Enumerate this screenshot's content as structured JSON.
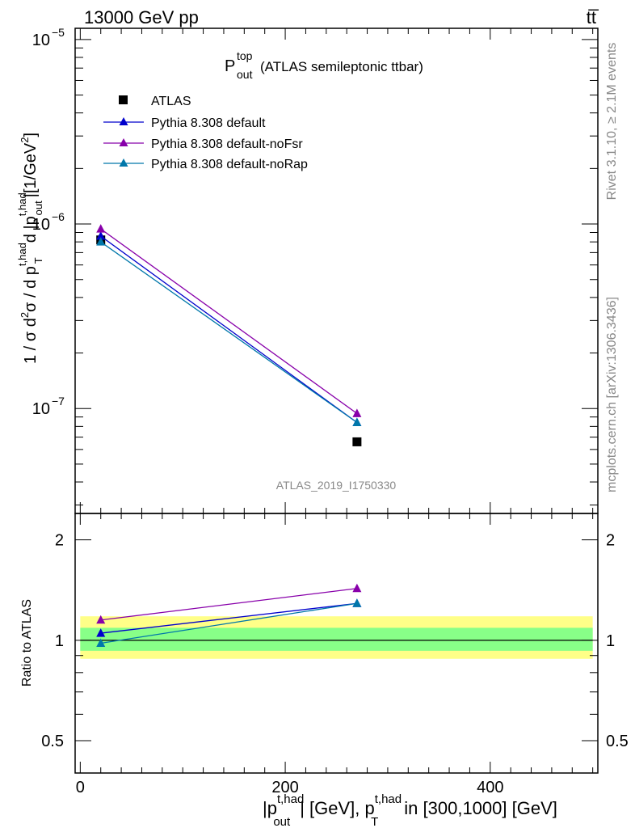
{
  "header": {
    "left": "13000 GeV pp",
    "right": "tt̅"
  },
  "side_labels": {
    "rivet": "Rivet 3.1.10, ≥ 2.1M events",
    "mcplots": "mcplots.cern.ch [arXiv:1306.3436]"
  },
  "chart_data": [
    {
      "type": "line",
      "title": {
        "main": "P",
        "sup": "top",
        "sub": "out",
        "rest": "(ATLAS semileptonic ttbar)"
      },
      "watermark": "ATLAS_2019_I1750330",
      "ylabel": "1 / σ d²σ / d p_T^{t,had} d |p_out^{t,had}| [1/GeV²]",
      "ylabel_parts": {
        "a": "1 / σ d",
        "b": "2",
        "c": "σ / d p",
        "d": "t,had",
        "e": "T",
        "f": "d |p",
        "g": "t,had",
        "h": "out",
        "i": "|[1/GeV",
        "j": "2",
        "k": "]"
      },
      "yscale": "log",
      "ylim": [
        2.7e-08,
        1.15e-05
      ],
      "xlim": [
        -5,
        505
      ],
      "yticks": [
        {
          "value": 1e-07,
          "base": "10",
          "exp": "−7"
        },
        {
          "value": 1e-06,
          "base": "10",
          "exp": "−6"
        },
        {
          "value": 1e-05,
          "base": "10",
          "exp": "−5"
        }
      ],
      "legend_position": "top-left",
      "series": [
        {
          "name": "ATLAS",
          "color": "#000000",
          "marker": "square",
          "line": false,
          "x": [
            20,
            270
          ],
          "y": [
            8.2e-07,
            6.6e-08
          ]
        },
        {
          "name": "Pythia 8.308 default",
          "color": "#0000cc",
          "marker": "triangle",
          "line": true,
          "x": [
            20,
            270
          ],
          "y": [
            8.6e-07,
            8.4e-08
          ]
        },
        {
          "name": "Pythia 8.308 default-noFsr",
          "color": "#8800aa",
          "marker": "triangle",
          "line": true,
          "x": [
            20,
            270
          ],
          "y": [
            9.4e-07,
            9.4e-08
          ]
        },
        {
          "name": "Pythia 8.308 default-noRap",
          "color": "#0077aa",
          "marker": "triangle",
          "line": true,
          "x": [
            20,
            270
          ],
          "y": [
            8e-07,
            8.4e-08
          ]
        }
      ]
    },
    {
      "type": "line",
      "ylabel": "Ratio to ATLAS",
      "yscale": "log",
      "ylim": [
        0.4,
        2.4
      ],
      "xlim": [
        -5,
        505
      ],
      "yticks": [
        {
          "value": 0.5,
          "label": "0.5"
        },
        {
          "value": 1,
          "label": "1"
        },
        {
          "value": 2,
          "label": "2"
        }
      ],
      "xticks": [
        {
          "value": 0,
          "label": "0"
        },
        {
          "value": 200,
          "label": "200"
        },
        {
          "value": 400,
          "label": "400"
        }
      ],
      "xlabel": "|p_out^{t,had}| [GeV], p_T^{t,had} in [300,1000] [GeV]",
      "xlabel_parts": {
        "a": "|p",
        "b": "t,had",
        "c": "out",
        "d": "| [GeV], p",
        "e": "t,had",
        "f": "T",
        "g": "in [300,1000] [GeV]"
      },
      "bands": [
        {
          "name": "total uncertainty",
          "color": "#ffff88",
          "x": [
            0,
            500
          ],
          "y": [
            0.88,
            1.18
          ]
        },
        {
          "name": "stat uncertainty",
          "color": "#88ff88",
          "x": [
            0,
            500
          ],
          "y": [
            0.93,
            1.09
          ]
        }
      ],
      "reference_line": 1,
      "series": [
        {
          "name": "Pythia 8.308 default",
          "color": "#0000cc",
          "x": [
            20,
            270
          ],
          "y": [
            1.05,
            1.29
          ]
        },
        {
          "name": "Pythia 8.308 default-noFsr",
          "color": "#8800aa",
          "x": [
            20,
            270
          ],
          "y": [
            1.15,
            1.43
          ]
        },
        {
          "name": "Pythia 8.308 default-noRap",
          "color": "#0077aa",
          "x": [
            20,
            270
          ],
          "y": [
            0.98,
            1.29
          ]
        }
      ]
    }
  ]
}
